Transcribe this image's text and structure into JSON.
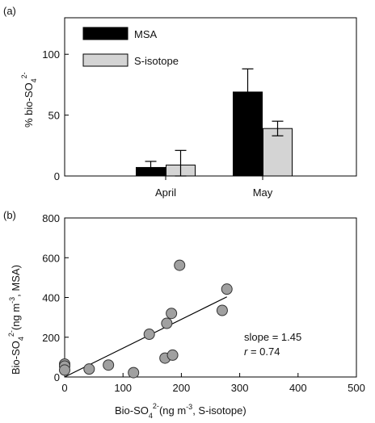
{
  "chart_data": [
    {
      "type": "bar",
      "panel_label": "(a)",
      "ylabel_main": "% bio-SO",
      "ylabel_sub": "4",
      "ylabel_sup": "2-",
      "categories": [
        "April",
        "May"
      ],
      "ylim": [
        0,
        130
      ],
      "yticks": [
        0,
        50,
        100
      ],
      "series": [
        {
          "name": "MSA",
          "values": [
            7,
            69
          ],
          "errors": [
            5,
            19
          ],
          "color": "#000000"
        },
        {
          "name": "S-isotope",
          "values": [
            9,
            39
          ],
          "errors": [
            12,
            6
          ],
          "color": "#d4d4d4"
        }
      ],
      "legend_position": "top-left",
      "grid": false
    },
    {
      "type": "scatter",
      "panel_label": "(b)",
      "xlabel_main": "Bio-SO",
      "xlabel_sub": "4",
      "xlabel_sup": "2-",
      "xlabel_units": "(ng m",
      "xlabel_units_sup": "-3",
      "xlabel_units_tail": ", S-isotope)",
      "ylabel_main": "Bio-SO",
      "ylabel_sub": "4",
      "ylabel_sup": "2-",
      "ylabel_units": "(ng m",
      "ylabel_units_sup": "-3",
      "ylabel_units_tail": ", MSA)",
      "xlim": [
        0,
        500
      ],
      "ylim": [
        0,
        800
      ],
      "xticks": [
        0,
        100,
        200,
        300,
        400,
        500
      ],
      "yticks": [
        0,
        200,
        400,
        600,
        800
      ],
      "points": [
        [
          0,
          65
        ],
        [
          0,
          55
        ],
        [
          0,
          35
        ],
        [
          42,
          40
        ],
        [
          75,
          60
        ],
        [
          118,
          22
        ],
        [
          145,
          215
        ],
        [
          172,
          95
        ],
        [
          175,
          270
        ],
        [
          183,
          320
        ],
        [
          185,
          110
        ],
        [
          197,
          562
        ],
        [
          270,
          335
        ],
        [
          278,
          442
        ]
      ],
      "fit_line": {
        "x": [
          0,
          278
        ],
        "y": [
          0,
          403
        ]
      },
      "marker_color": "#a0a0a0",
      "annotation_slope": "slope = 1.45",
      "annotation_r_symbol": "r",
      "annotation_r_value": " = 0.74",
      "grid": false
    }
  ]
}
